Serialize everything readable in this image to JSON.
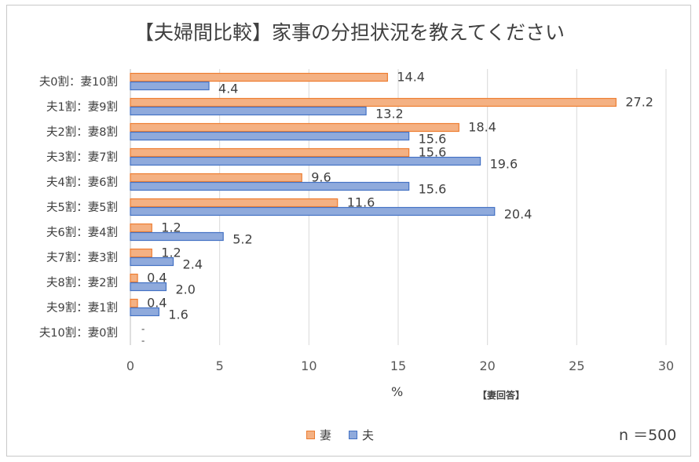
{
  "chart_data": {
    "type": "bar",
    "orientation": "horizontal",
    "title": "【夫婦間比較】家事の分担状況を教えてください",
    "xlabel": "%",
    "respondent_note": "【妻回答】",
    "sample_size": "n ＝500",
    "categories": [
      "夫0割：妻10割",
      "夫1割：妻9割",
      "夫2割：妻8割",
      "夫3割：妻7割",
      "夫4割：妻6割",
      "夫5割：妻5割",
      "夫6割：妻4割",
      "夫7割：妻3割",
      "夫8割：妻2割",
      "夫9割：妻1割",
      "夫10割：妻0割"
    ],
    "series": [
      {
        "name": "妻",
        "color": "#f4b183",
        "edge": "#ed7d31",
        "values": [
          14.4,
          27.2,
          18.4,
          15.6,
          9.6,
          11.6,
          1.2,
          1.2,
          0.4,
          0.4,
          0.0
        ],
        "labels": [
          "14.4",
          "27.2",
          "18.4",
          "15.6",
          "9.6",
          "11.6",
          "1.2",
          "1.2",
          "0.4",
          "0.4",
          "-"
        ]
      },
      {
        "name": "夫",
        "color": "#8faadc",
        "edge": "#4472c4",
        "values": [
          4.4,
          13.2,
          15.6,
          19.6,
          15.6,
          20.4,
          5.2,
          2.4,
          2.0,
          1.6,
          0.0
        ],
        "labels": [
          "4.4",
          "13.2",
          "15.6",
          "19.6",
          "15.6",
          "20.4",
          "5.2",
          "2.4",
          "2.0",
          "1.6",
          "-"
        ]
      }
    ],
    "xlim": [
      0,
      30
    ],
    "xticks": [
      0,
      5,
      10,
      15,
      20,
      25,
      30
    ],
    "grid": true,
    "legend_position": "bottom"
  }
}
